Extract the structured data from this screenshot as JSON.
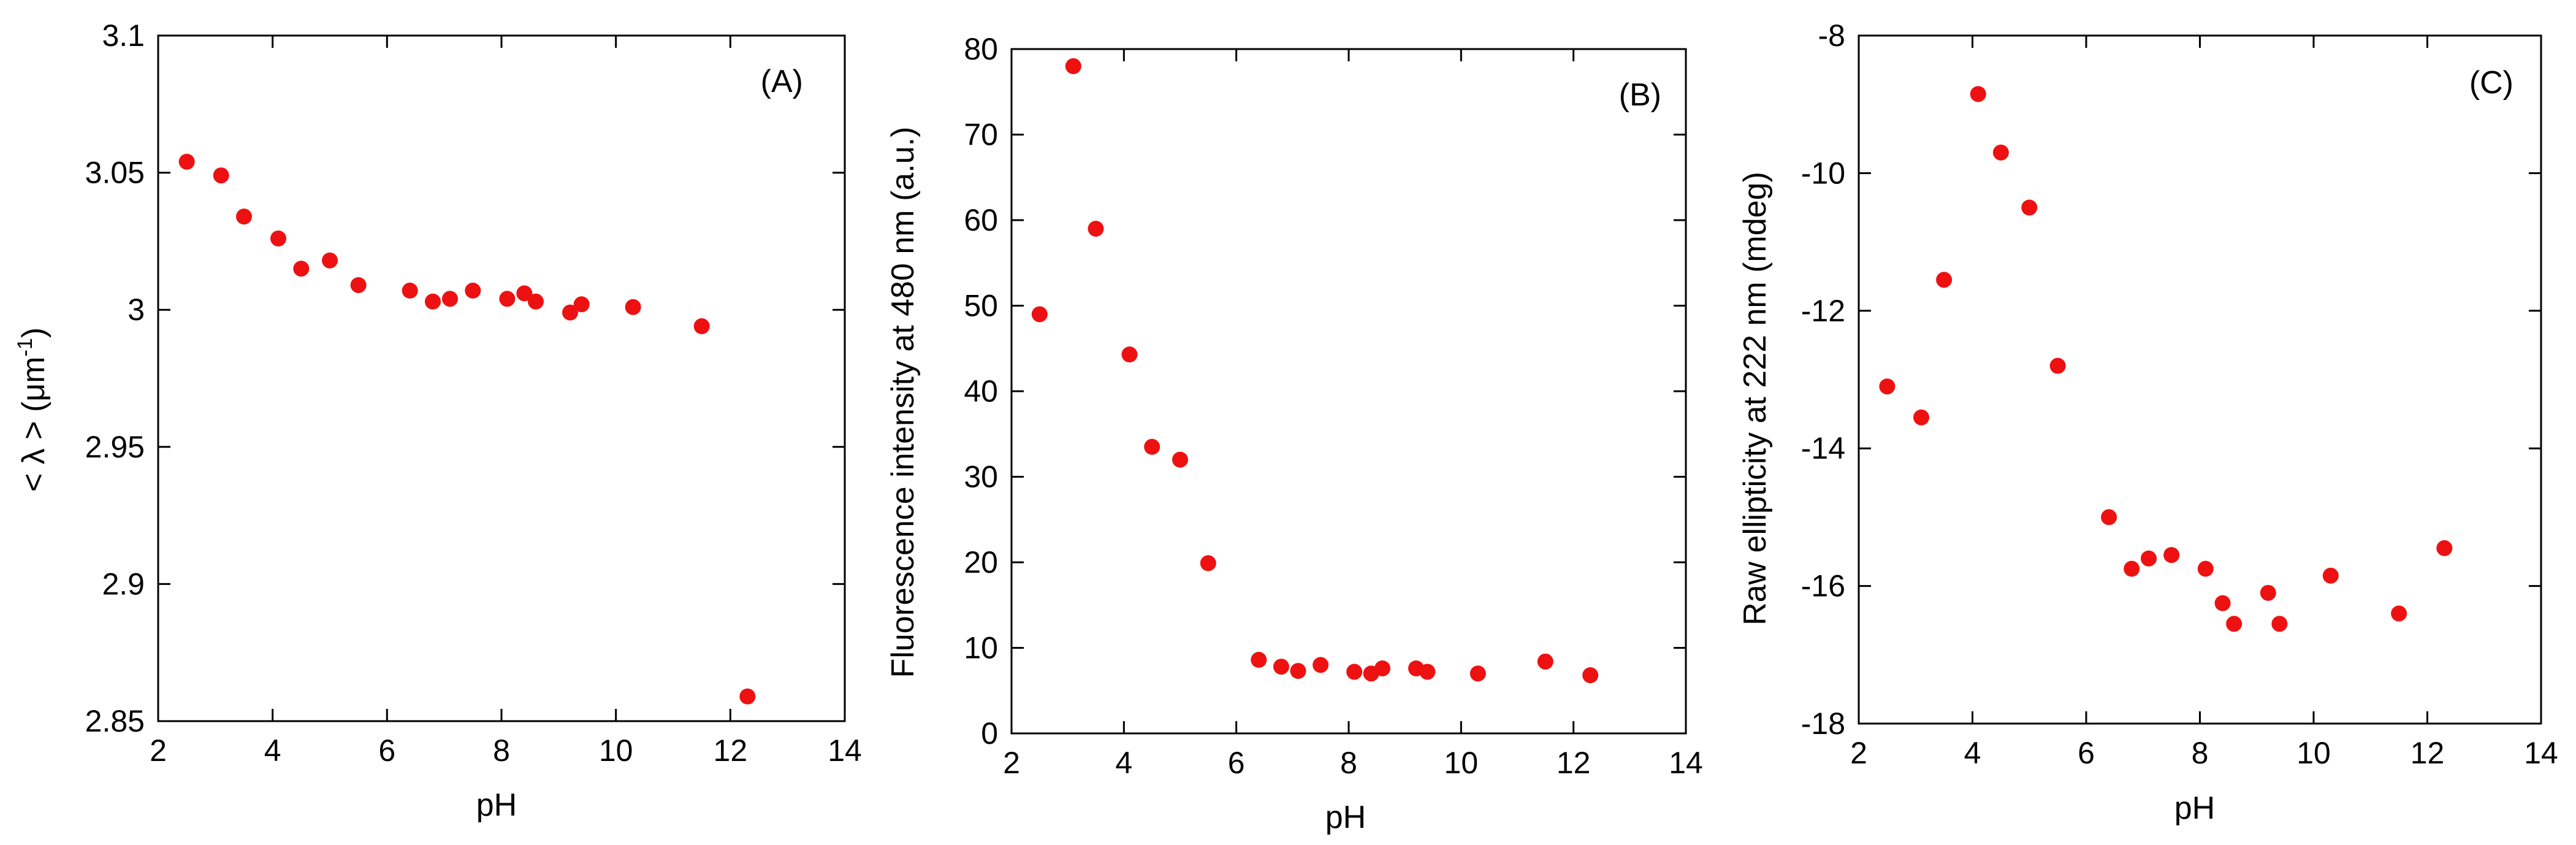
{
  "chart_data": [
    {
      "type": "scatter",
      "panel_label": "(A)",
      "xlabel": "pH",
      "ylabel": "< λ > (μm",
      "ylabel_sup": "-1",
      "ylabel_tail": ")",
      "xlim": [
        2,
        14
      ],
      "ylim": [
        2.85,
        3.1
      ],
      "xticks": [
        2,
        4,
        6,
        8,
        10,
        12,
        14
      ],
      "yticks": [
        2.85,
        2.9,
        2.95,
        3,
        3.05,
        3.1
      ],
      "ytick_labels": [
        "2.85",
        "2.9",
        "2.95",
        "3",
        "3.05",
        "3.1"
      ],
      "marker_color": "#ee1111",
      "x": [
        2.5,
        3.1,
        3.5,
        4.1,
        4.5,
        5.0,
        5.5,
        6.4,
        6.8,
        7.1,
        7.5,
        8.1,
        8.4,
        8.6,
        9.2,
        9.4,
        10.3,
        11.5,
        12.3
      ],
      "y": [
        3.054,
        3.049,
        3.034,
        3.026,
        3.015,
        3.018,
        3.009,
        3.007,
        3.003,
        3.004,
        3.007,
        3.004,
        3.006,
        3.003,
        2.999,
        3.002,
        3.001,
        2.994,
        2.859
      ]
    },
    {
      "type": "scatter",
      "panel_label": "(B)",
      "xlabel": "pH",
      "ylabel": "Fluorescence intensity at 480 nm (a.u.)",
      "xlim": [
        2,
        14
      ],
      "ylim": [
        0,
        80
      ],
      "xticks": [
        2,
        4,
        6,
        8,
        10,
        12,
        14
      ],
      "yticks": [
        0,
        10,
        20,
        30,
        40,
        50,
        60,
        70,
        80
      ],
      "ytick_labels": [
        "0",
        "10",
        "20",
        "30",
        "40",
        "50",
        "60",
        "70",
        "80"
      ],
      "marker_color": "#ee1111",
      "x": [
        2.5,
        3.1,
        3.5,
        4.1,
        4.5,
        5.0,
        5.5,
        6.4,
        6.8,
        7.1,
        7.5,
        8.1,
        8.4,
        8.6,
        9.2,
        9.4,
        10.3,
        11.5,
        12.3
      ],
      "y": [
        49,
        78,
        59,
        44.3,
        33.5,
        32,
        19.9,
        8.6,
        7.8,
        7.3,
        8.0,
        7.2,
        7.0,
        7.6,
        7.6,
        7.2,
        7.0,
        8.4,
        6.8
      ]
    },
    {
      "type": "scatter",
      "panel_label": "(C)",
      "xlabel": "pH",
      "ylabel": "Raw ellipticity at 222 nm (mdeg)",
      "xlim": [
        2,
        14
      ],
      "ylim": [
        -18,
        -8
      ],
      "xticks": [
        2,
        4,
        6,
        8,
        10,
        12,
        14
      ],
      "yticks": [
        -18,
        -16,
        -14,
        -12,
        -10,
        -8
      ],
      "ytick_labels": [
        "-18",
        "-16",
        "-14",
        "-12",
        "-10",
        "-8"
      ],
      "marker_color": "#ee1111",
      "x": [
        2.5,
        3.1,
        3.5,
        4.1,
        4.5,
        5.0,
        5.5,
        6.4,
        6.8,
        7.1,
        7.5,
        8.1,
        8.4,
        8.6,
        9.2,
        9.4,
        10.3,
        11.5,
        12.3
      ],
      "y": [
        -13.1,
        -13.55,
        -11.55,
        -8.85,
        -9.7,
        -10.5,
        -12.8,
        -15.0,
        -15.75,
        -15.6,
        -15.55,
        -15.75,
        -16.25,
        -16.55,
        -16.1,
        -16.55,
        -15.85,
        -16.4,
        -15.45
      ]
    }
  ]
}
